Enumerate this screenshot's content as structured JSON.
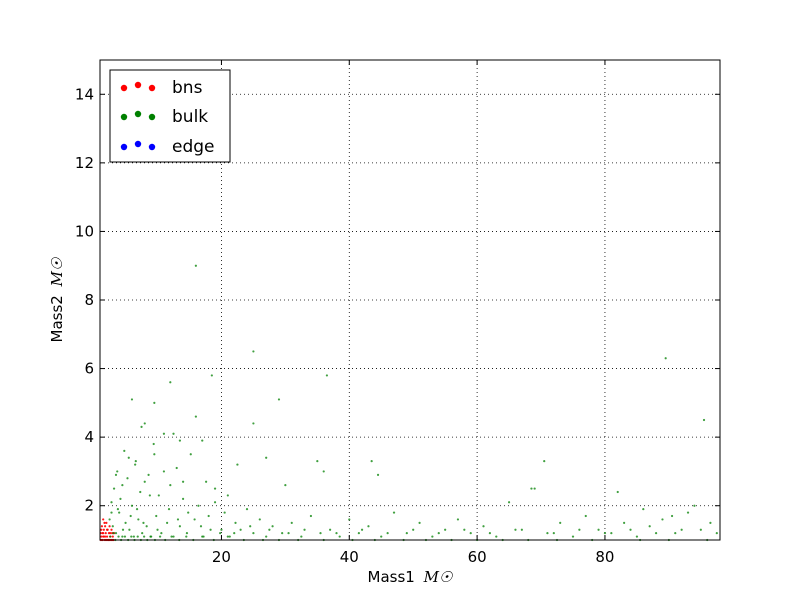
{
  "chart_data": {
    "type": "scatter",
    "title": "",
    "xlabel": "Mass1",
    "xlabel_unit": "M☉",
    "ylabel": "Mass2",
    "ylabel_unit": "M☉",
    "xlim": [
      1,
      98
    ],
    "ylim": [
      1,
      15
    ],
    "xticks": [
      20,
      40,
      60,
      80
    ],
    "yticks": [
      2,
      4,
      6,
      8,
      10,
      12,
      14
    ],
    "grid": true,
    "grid_style": "dotted",
    "legend_placement": "top-left",
    "series": [
      {
        "name": "bns",
        "color": "#ff0000",
        "points": [
          [
            1.1,
            1.0
          ],
          [
            1.2,
            1.1
          ],
          [
            1.3,
            1.0
          ],
          [
            1.4,
            1.2
          ],
          [
            1.5,
            1.1
          ],
          [
            1.6,
            1.3
          ],
          [
            1.7,
            1.0
          ],
          [
            1.8,
            1.4
          ],
          [
            1.9,
            1.2
          ],
          [
            2.0,
            1.5
          ],
          [
            2.1,
            1.1
          ],
          [
            2.2,
            1.3
          ],
          [
            2.3,
            1.0
          ],
          [
            2.4,
            1.2
          ],
          [
            2.5,
            1.4
          ],
          [
            2.6,
            1.1
          ],
          [
            2.7,
            1.0
          ],
          [
            2.8,
            1.3
          ],
          [
            2.9,
            1.2
          ],
          [
            3.0,
            1.1
          ],
          [
            3.1,
            1.0
          ],
          [
            3.2,
            1.2
          ],
          [
            1.3,
            1.4
          ],
          [
            1.5,
            1.6
          ],
          [
            1.7,
            1.5
          ],
          [
            1.2,
            1.3
          ],
          [
            2.0,
            1.0
          ],
          [
            2.5,
            1.0
          ],
          [
            1.9,
            1.0
          ],
          [
            1.4,
            1.0
          ],
          [
            2.2,
            1.0
          ],
          [
            2.8,
            1.0
          ],
          [
            1.6,
            1.1
          ],
          [
            2.4,
            1.0
          ],
          [
            3.0,
            1.0
          ],
          [
            1.8,
            1.1
          ],
          [
            1.1,
            1.2
          ],
          [
            2.6,
            1.2
          ],
          [
            2.1,
            1.3
          ],
          [
            1.5,
            1.2
          ]
        ]
      },
      {
        "name": "bulk",
        "color": "#008000",
        "points": [
          [
            2.5,
            1.6
          ],
          [
            2.8,
            2.1
          ],
          [
            3.0,
            1.4
          ],
          [
            3.2,
            2.5
          ],
          [
            3.5,
            1.2
          ],
          [
            3.7,
            3.0
          ],
          [
            4.0,
            1.8
          ],
          [
            4.2,
            2.2
          ],
          [
            4.5,
            1.1
          ],
          [
            4.8,
            3.6
          ],
          [
            5.0,
            1.5
          ],
          [
            5.3,
            2.8
          ],
          [
            5.6,
            1.3
          ],
          [
            6.0,
            2.0
          ],
          [
            6.3,
            1.1
          ],
          [
            6.6,
            3.3
          ],
          [
            7.0,
            1.6
          ],
          [
            7.3,
            2.4
          ],
          [
            7.6,
            1.2
          ],
          [
            8.0,
            4.4
          ],
          [
            8.3,
            1.4
          ],
          [
            8.6,
            2.9
          ],
          [
            9.0,
            1.1
          ],
          [
            9.4,
            3.8
          ],
          [
            9.8,
            1.7
          ],
          [
            10.2,
            2.3
          ],
          [
            10.6,
            1.2
          ],
          [
            11.0,
            4.1
          ],
          [
            11.5,
            1.5
          ],
          [
            12.0,
            2.6
          ],
          [
            12.5,
            1.1
          ],
          [
            13.0,
            3.1
          ],
          [
            13.5,
            1.4
          ],
          [
            14.0,
            2.2
          ],
          [
            14.6,
            1.2
          ],
          [
            15.2,
            3.5
          ],
          [
            15.8,
            1.6
          ],
          [
            16.4,
            2.0
          ],
          [
            17.0,
            1.1
          ],
          [
            17.6,
            2.7
          ],
          [
            18.3,
            1.3
          ],
          [
            19.0,
            2.1
          ],
          [
            19.8,
            1.2
          ],
          [
            20.5,
            1.8
          ],
          [
            21.3,
            1.1
          ],
          [
            22.2,
            1.5
          ],
          [
            23.0,
            1.3
          ],
          [
            24.0,
            1.9
          ],
          [
            25.0,
            1.2
          ],
          [
            26.0,
            1.6
          ],
          [
            27.0,
            1.1
          ],
          [
            28.0,
            1.4
          ],
          [
            29.5,
            1.2
          ],
          [
            31.0,
            1.5
          ],
          [
            32.5,
            1.1
          ],
          [
            34.0,
            1.7
          ],
          [
            35.5,
            1.2
          ],
          [
            37.0,
            1.3
          ],
          [
            38.5,
            1.1
          ],
          [
            40.0,
            1.6
          ],
          [
            41.5,
            1.2
          ],
          [
            43.0,
            1.4
          ],
          [
            45.0,
            1.1
          ],
          [
            47.0,
            1.8
          ],
          [
            49.0,
            1.2
          ],
          [
            51.0,
            1.5
          ],
          [
            53.0,
            1.1
          ],
          [
            55.0,
            1.3
          ],
          [
            57.0,
            1.6
          ],
          [
            59.0,
            1.2
          ],
          [
            61.0,
            1.4
          ],
          [
            63.0,
            1.1
          ],
          [
            65.0,
            2.1
          ],
          [
            67.0,
            1.3
          ],
          [
            69.0,
            2.5
          ],
          [
            71.0,
            1.2
          ],
          [
            73.0,
            1.5
          ],
          [
            75.0,
            1.1
          ],
          [
            77.0,
            1.7
          ],
          [
            79.0,
            1.3
          ],
          [
            81.0,
            1.2
          ],
          [
            83.0,
            1.5
          ],
          [
            85.0,
            1.1
          ],
          [
            87.0,
            1.4
          ],
          [
            89.0,
            1.6
          ],
          [
            91.0,
            1.2
          ],
          [
            93.0,
            1.8
          ],
          [
            95.0,
            1.3
          ],
          [
            96.5,
            1.5
          ],
          [
            97.5,
            1.2
          ],
          [
            16.0,
            9.0
          ],
          [
            25.0,
            6.5
          ],
          [
            89.5,
            6.3
          ],
          [
            36.5,
            5.8
          ],
          [
            18.5,
            5.8
          ],
          [
            12.0,
            5.6
          ],
          [
            29.0,
            5.1
          ],
          [
            6.0,
            5.1
          ],
          [
            9.5,
            5.0
          ],
          [
            95.5,
            4.5
          ],
          [
            25.0,
            4.4
          ],
          [
            16.0,
            4.6
          ],
          [
            12.5,
            4.1
          ],
          [
            7.5,
            4.3
          ],
          [
            9.5,
            3.5
          ],
          [
            13.5,
            3.9
          ],
          [
            17.0,
            3.9
          ],
          [
            43.5,
            3.3
          ],
          [
            35.0,
            3.3
          ],
          [
            70.5,
            3.3
          ],
          [
            27.0,
            3.4
          ],
          [
            22.5,
            3.2
          ],
          [
            36.0,
            3.0
          ],
          [
            44.5,
            2.9
          ],
          [
            11.0,
            3.0
          ],
          [
            14.0,
            2.7
          ],
          [
            30.0,
            2.6
          ],
          [
            68.5,
            2.5
          ],
          [
            82.0,
            2.4
          ],
          [
            19.0,
            2.5
          ],
          [
            21.0,
            2.3
          ],
          [
            8.0,
            2.7
          ],
          [
            6.5,
            3.2
          ],
          [
            5.5,
            3.4
          ],
          [
            4.5,
            2.6
          ],
          [
            3.5,
            2.9
          ],
          [
            2.8,
            1.8
          ],
          [
            3.8,
            1.9
          ],
          [
            4.6,
            1.3
          ],
          [
            5.8,
            1.7
          ],
          [
            6.8,
            1.9
          ],
          [
            7.8,
            1.5
          ],
          [
            8.8,
            2.3
          ],
          [
            10.0,
            1.3
          ],
          [
            11.8,
            1.9
          ],
          [
            13.2,
            1.6
          ],
          [
            14.8,
            1.8
          ],
          [
            16.8,
            1.4
          ],
          [
            18.0,
            1.7
          ],
          [
            20.0,
            1.3
          ],
          [
            22.0,
            1.2
          ],
          [
            24.5,
            1.4
          ],
          [
            27.5,
            1.3
          ],
          [
            30.5,
            1.2
          ],
          [
            33.0,
            1.3
          ],
          [
            38.0,
            1.2
          ],
          [
            42.0,
            1.3
          ],
          [
            46.0,
            1.2
          ],
          [
            50.0,
            1.3
          ],
          [
            54.0,
            1.2
          ],
          [
            58.0,
            1.3
          ],
          [
            62.0,
            1.2
          ],
          [
            66.0,
            1.3
          ],
          [
            72.0,
            1.2
          ],
          [
            76.0,
            1.3
          ],
          [
            80.0,
            1.2
          ],
          [
            84.0,
            1.3
          ],
          [
            88.0,
            1.2
          ],
          [
            92.0,
            1.3
          ],
          [
            94.0,
            2.0
          ],
          [
            90.5,
            1.7
          ],
          [
            86.0,
            1.9
          ],
          [
            2.6,
            1.1
          ],
          [
            3.1,
            1.2
          ],
          [
            3.4,
            1.0
          ],
          [
            3.9,
            1.1
          ],
          [
            4.3,
            1.0
          ],
          [
            4.9,
            1.1
          ],
          [
            5.4,
            1.0
          ],
          [
            5.9,
            1.1
          ],
          [
            6.4,
            1.0
          ],
          [
            6.9,
            1.1
          ],
          [
            7.4,
            1.0
          ],
          [
            7.9,
            1.1
          ],
          [
            8.4,
            1.0
          ],
          [
            8.9,
            1.1
          ],
          [
            9.6,
            1.0
          ],
          [
            10.4,
            1.1
          ],
          [
            11.2,
            1.0
          ],
          [
            12.2,
            1.1
          ],
          [
            13.4,
            1.0
          ],
          [
            14.5,
            1.1
          ],
          [
            15.6,
            1.0
          ],
          [
            17.2,
            1.1
          ],
          [
            18.8,
            1.0
          ],
          [
            21.0,
            1.1
          ],
          [
            23.5,
            1.0
          ],
          [
            26.5,
            1.0
          ],
          [
            29.0,
            1.0
          ],
          [
            32.0,
            1.0
          ],
          [
            36.0,
            1.0
          ],
          [
            40.5,
            1.0
          ],
          [
            44.0,
            1.0
          ],
          [
            48.5,
            1.0
          ],
          [
            52.0,
            1.0
          ],
          [
            56.0,
            1.0
          ],
          [
            60.0,
            1.0
          ],
          [
            64.0,
            1.0
          ],
          [
            68.0,
            1.0
          ],
          [
            72.5,
            1.0
          ],
          [
            78.0,
            1.0
          ],
          [
            85.5,
            1.0
          ],
          [
            90.0,
            1.0
          ],
          [
            96.0,
            1.0
          ]
        ]
      },
      {
        "name": "edge",
        "color": "#0000ff",
        "points": []
      }
    ]
  }
}
